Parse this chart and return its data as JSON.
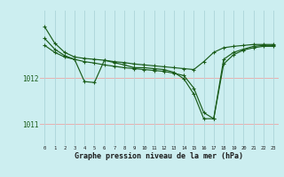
{
  "bg_color": "#cceef0",
  "grid_color_h": "#e8b0b0",
  "grid_color_v": "#b0d8dc",
  "line_color": "#1a5c1a",
  "hours": [
    0,
    1,
    2,
    3,
    4,
    5,
    6,
    7,
    8,
    9,
    10,
    11,
    12,
    13,
    14,
    15,
    16,
    17,
    18,
    19,
    20,
    21,
    22,
    23
  ],
  "line1": [
    1013.1,
    1012.75,
    1012.55,
    1012.45,
    1012.42,
    1012.4,
    1012.38,
    1012.35,
    1012.33,
    1012.3,
    1012.28,
    1012.26,
    1012.24,
    1012.22,
    1012.2,
    1012.18,
    1012.35,
    1012.55,
    1012.65,
    1012.68,
    1012.7,
    1012.72,
    1012.72,
    1012.72
  ],
  "line2": [
    1012.85,
    1012.62,
    1012.48,
    1012.4,
    1011.92,
    1011.9,
    1012.38,
    1012.33,
    1012.28,
    1012.22,
    1012.22,
    1012.2,
    1012.18,
    1012.12,
    1011.98,
    1011.65,
    1011.12,
    1011.12,
    1012.4,
    1012.55,
    1012.62,
    1012.68,
    1012.7,
    1012.7
  ],
  "line3": [
    1012.7,
    1012.55,
    1012.45,
    1012.4,
    1012.35,
    1012.32,
    1012.28,
    1012.25,
    1012.22,
    1012.2,
    1012.18,
    1012.16,
    1012.14,
    1012.1,
    1012.05,
    1011.78,
    1011.25,
    1011.12,
    1012.3,
    1012.5,
    1012.6,
    1012.65,
    1012.68,
    1012.68
  ],
  "ylim": [
    1010.55,
    1013.45
  ],
  "yticks": [
    1011,
    1012
  ],
  "xlabel": "Graphe pression niveau de la mer (hPa)"
}
